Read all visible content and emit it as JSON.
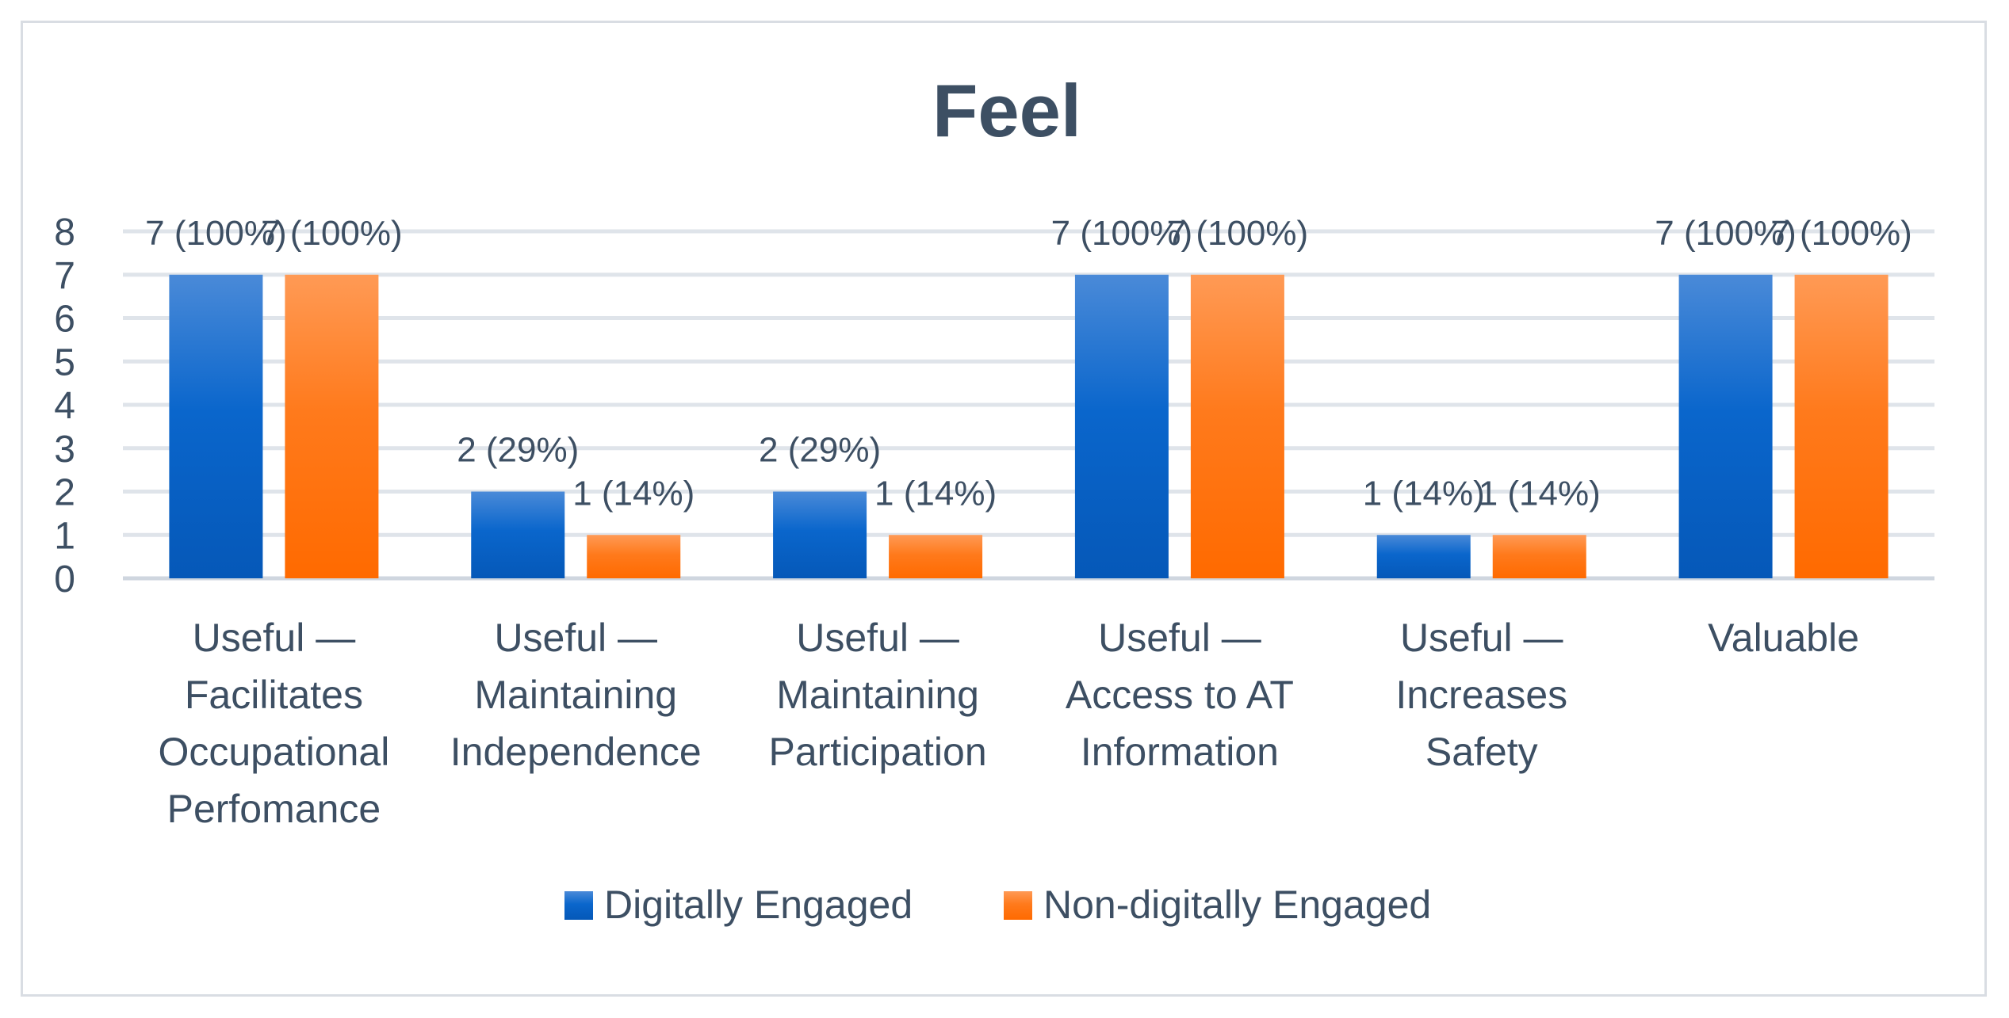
{
  "chart_data": {
    "type": "bar",
    "title": "Feel",
    "xlabel": "",
    "ylabel": "",
    "ylim": [
      0,
      8
    ],
    "yticks": [
      "0",
      "1",
      "2",
      "3",
      "4",
      "5",
      "6",
      "7",
      "8"
    ],
    "grid": true,
    "legend_position": "bottom",
    "categories": [
      [
        "Useful —",
        "Facilitates",
        "Occupational",
        "Perfomance"
      ],
      [
        "Useful —",
        "Maintaining",
        "Independence"
      ],
      [
        "Useful —",
        "Maintaining",
        "Participation"
      ],
      [
        "Useful —",
        "Access to AT",
        "Information"
      ],
      [
        "Useful —",
        "Increases",
        "Safety"
      ],
      [
        "Valuable"
      ]
    ],
    "series": [
      {
        "name": "Digitally Engaged",
        "color": "#1f6fd1",
        "values": [
          7,
          2,
          2,
          7,
          1,
          7
        ],
        "labels": [
          "7 (100%)",
          "2 (29%)",
          "2 (29%)",
          "7 (100%)",
          "1 (14%)",
          "7 (100%)"
        ]
      },
      {
        "name": "Non-digitally Engaged",
        "color": "#ff7a1c",
        "values": [
          7,
          1,
          1,
          7,
          1,
          7
        ],
        "labels": [
          "7 (100%)",
          "1 (14%)",
          "1 (14%)",
          "7 (100%)",
          "1 (14%)",
          "7 (100%)"
        ]
      }
    ]
  }
}
